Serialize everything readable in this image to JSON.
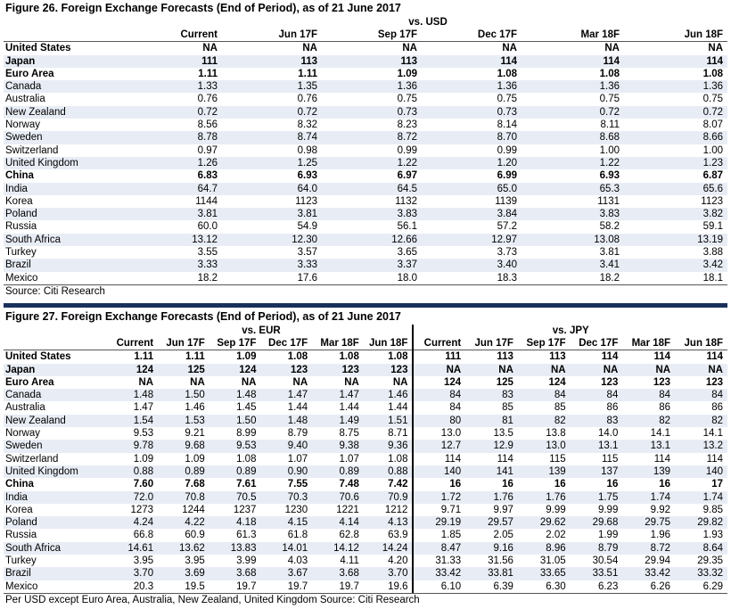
{
  "fig26": {
    "title": "Figure 26. Foreign Exchange Forecasts (End of Period), as of 21 June 2017",
    "group": "vs. USD",
    "columns": [
      "Current",
      "Jun 17F",
      "Sep 17F",
      "Dec 17F",
      "Mar 18F",
      "Jun 18F"
    ],
    "rows": [
      {
        "name": "United States",
        "bold": true,
        "values": [
          "NA",
          "NA",
          "NA",
          "NA",
          "NA",
          "NA"
        ]
      },
      {
        "name": "Japan",
        "bold": true,
        "values": [
          "111",
          "113",
          "113",
          "114",
          "114",
          "114"
        ]
      },
      {
        "name": "Euro Area",
        "bold": true,
        "values": [
          "1.11",
          "1.11",
          "1.09",
          "1.08",
          "1.08",
          "1.08"
        ]
      },
      {
        "name": "Canada",
        "bold": false,
        "values": [
          "1.33",
          "1.35",
          "1.36",
          "1.36",
          "1.36",
          "1.36"
        ]
      },
      {
        "name": "Australia",
        "bold": false,
        "values": [
          "0.76",
          "0.76",
          "0.75",
          "0.75",
          "0.75",
          "0.75"
        ]
      },
      {
        "name": "New Zealand",
        "bold": false,
        "values": [
          "0.72",
          "0.72",
          "0.73",
          "0.73",
          "0.72",
          "0.72"
        ]
      },
      {
        "name": "Norway",
        "bold": false,
        "values": [
          "8.56",
          "8.32",
          "8.23",
          "8.14",
          "8.11",
          "8.07"
        ]
      },
      {
        "name": "Sweden",
        "bold": false,
        "values": [
          "8.78",
          "8.74",
          "8.72",
          "8.70",
          "8.68",
          "8.66"
        ]
      },
      {
        "name": "Switzerland",
        "bold": false,
        "values": [
          "0.97",
          "0.98",
          "0.99",
          "0.99",
          "1.00",
          "1.00"
        ]
      },
      {
        "name": "United Kingdom",
        "bold": false,
        "values": [
          "1.26",
          "1.25",
          "1.22",
          "1.20",
          "1.22",
          "1.23"
        ]
      },
      {
        "name": "China",
        "bold": true,
        "values": [
          "6.83",
          "6.93",
          "6.97",
          "6.99",
          "6.93",
          "6.87"
        ]
      },
      {
        "name": "India",
        "bold": false,
        "values": [
          "64.7",
          "64.0",
          "64.5",
          "65.0",
          "65.3",
          "65.6"
        ]
      },
      {
        "name": "Korea",
        "bold": false,
        "values": [
          "1144",
          "1123",
          "1132",
          "1139",
          "1131",
          "1123"
        ]
      },
      {
        "name": "Poland",
        "bold": false,
        "values": [
          "3.81",
          "3.81",
          "3.83",
          "3.84",
          "3.83",
          "3.82"
        ]
      },
      {
        "name": "Russia",
        "bold": false,
        "values": [
          "60.0",
          "54.9",
          "56.1",
          "57.2",
          "58.2",
          "59.1"
        ]
      },
      {
        "name": "South Africa",
        "bold": false,
        "values": [
          "13.12",
          "12.30",
          "12.66",
          "12.97",
          "13.08",
          "13.19"
        ]
      },
      {
        "name": "Turkey",
        "bold": false,
        "values": [
          "3.55",
          "3.57",
          "3.65",
          "3.73",
          "3.81",
          "3.88"
        ]
      },
      {
        "name": "Brazil",
        "bold": false,
        "values": [
          "3.33",
          "3.33",
          "3.37",
          "3.40",
          "3.41",
          "3.42"
        ]
      },
      {
        "name": "Mexico",
        "bold": false,
        "values": [
          "18.2",
          "17.6",
          "18.0",
          "18.3",
          "18.2",
          "18.1"
        ]
      }
    ],
    "source": "Source: Citi Research"
  },
  "fig27": {
    "title": "Figure 27. Foreign Exchange Forecasts (End of Period), as of 21 June 2017",
    "group_left": "vs. EUR",
    "group_right": "vs. JPY",
    "columns": [
      "Current",
      "Jun 17F",
      "Sep 17F",
      "Dec 17F",
      "Mar 18F",
      "Jun 18F"
    ],
    "rows": [
      {
        "name": "United States",
        "bold": true,
        "eur": [
          "1.11",
          "1.11",
          "1.09",
          "1.08",
          "1.08",
          "1.08"
        ],
        "jpy": [
          "111",
          "113",
          "113",
          "114",
          "114",
          "114"
        ]
      },
      {
        "name": "Japan",
        "bold": true,
        "eur": [
          "124",
          "125",
          "124",
          "123",
          "123",
          "123"
        ],
        "jpy": [
          "NA",
          "NA",
          "NA",
          "NA",
          "NA",
          "NA"
        ]
      },
      {
        "name": "Euro Area",
        "bold": true,
        "eur": [
          "NA",
          "NA",
          "NA",
          "NA",
          "NA",
          "NA"
        ],
        "jpy": [
          "124",
          "125",
          "124",
          "123",
          "123",
          "123"
        ]
      },
      {
        "name": "Canada",
        "bold": false,
        "eur": [
          "1.48",
          "1.50",
          "1.48",
          "1.47",
          "1.47",
          "1.46"
        ],
        "jpy": [
          "84",
          "83",
          "84",
          "84",
          "84",
          "84"
        ]
      },
      {
        "name": "Australia",
        "bold": false,
        "eur": [
          "1.47",
          "1.46",
          "1.45",
          "1.44",
          "1.44",
          "1.44"
        ],
        "jpy": [
          "84",
          "85",
          "85",
          "86",
          "86",
          "86"
        ]
      },
      {
        "name": "New Zealand",
        "bold": false,
        "eur": [
          "1.54",
          "1.53",
          "1.50",
          "1.48",
          "1.49",
          "1.51"
        ],
        "jpy": [
          "80",
          "81",
          "82",
          "83",
          "82",
          "82"
        ]
      },
      {
        "name": "Norway",
        "bold": false,
        "eur": [
          "9.53",
          "9.21",
          "8.99",
          "8.79",
          "8.75",
          "8.71"
        ],
        "jpy": [
          "13.0",
          "13.5",
          "13.8",
          "14.0",
          "14.1",
          "14.1"
        ]
      },
      {
        "name": "Sweden",
        "bold": false,
        "eur": [
          "9.78",
          "9.68",
          "9.53",
          "9.40",
          "9.38",
          "9.36"
        ],
        "jpy": [
          "12.7",
          "12.9",
          "13.0",
          "13.1",
          "13.1",
          "13.2"
        ]
      },
      {
        "name": "Switzerland",
        "bold": false,
        "eur": [
          "1.09",
          "1.09",
          "1.08",
          "1.07",
          "1.07",
          "1.08"
        ],
        "jpy": [
          "114",
          "114",
          "115",
          "115",
          "114",
          "114"
        ]
      },
      {
        "name": "United Kingdom",
        "bold": false,
        "eur": [
          "0.88",
          "0.89",
          "0.89",
          "0.90",
          "0.89",
          "0.88"
        ],
        "jpy": [
          "140",
          "141",
          "139",
          "137",
          "139",
          "140"
        ]
      },
      {
        "name": "China",
        "bold": true,
        "eur": [
          "7.60",
          "7.68",
          "7.61",
          "7.55",
          "7.48",
          "7.42"
        ],
        "jpy": [
          "16",
          "16",
          "16",
          "16",
          "16",
          "17"
        ]
      },
      {
        "name": "India",
        "bold": false,
        "eur": [
          "72.0",
          "70.8",
          "70.5",
          "70.3",
          "70.6",
          "70.9"
        ],
        "jpy": [
          "1.72",
          "1.76",
          "1.76",
          "1.75",
          "1.74",
          "1.74"
        ]
      },
      {
        "name": "Korea",
        "bold": false,
        "eur": [
          "1273",
          "1244",
          "1237",
          "1230",
          "1221",
          "1212"
        ],
        "jpy": [
          "9.71",
          "9.97",
          "9.99",
          "9.99",
          "9.92",
          "9.85"
        ]
      },
      {
        "name": "Poland",
        "bold": false,
        "eur": [
          "4.24",
          "4.22",
          "4.18",
          "4.15",
          "4.14",
          "4.13"
        ],
        "jpy": [
          "29.19",
          "29.57",
          "29.62",
          "29.68",
          "29.75",
          "29.82"
        ]
      },
      {
        "name": "Russia",
        "bold": false,
        "eur": [
          "66.8",
          "60.9",
          "61.3",
          "61.8",
          "62.8",
          "63.9"
        ],
        "jpy": [
          "1.85",
          "2.05",
          "2.02",
          "1.99",
          "1.96",
          "1.93"
        ]
      },
      {
        "name": "South Africa",
        "bold": false,
        "eur": [
          "14.61",
          "13.62",
          "13.83",
          "14.01",
          "14.12",
          "14.24"
        ],
        "jpy": [
          "8.47",
          "9.16",
          "8.96",
          "8.79",
          "8.72",
          "8.64"
        ]
      },
      {
        "name": "Turkey",
        "bold": false,
        "eur": [
          "3.95",
          "3.95",
          "3.99",
          "4.03",
          "4.11",
          "4.20"
        ],
        "jpy": [
          "31.33",
          "31.56",
          "31.05",
          "30.54",
          "29.94",
          "29.35"
        ]
      },
      {
        "name": "Brazil",
        "bold": false,
        "eur": [
          "3.70",
          "3.69",
          "3.68",
          "3.67",
          "3.68",
          "3.70"
        ],
        "jpy": [
          "33.42",
          "33.81",
          "33.65",
          "33.51",
          "33.42",
          "33.32"
        ]
      },
      {
        "name": "Mexico",
        "bold": false,
        "eur": [
          "20.3",
          "19.5",
          "19.7",
          "19.7",
          "19.7",
          "19.6"
        ],
        "jpy": [
          "6.10",
          "6.39",
          "6.30",
          "6.23",
          "6.26",
          "6.29"
        ]
      }
    ],
    "source": "Per USD except Euro Area, Australia, New Zealand, United Kingdom  Source: Citi Research"
  },
  "colors": {
    "header_bar": "#1a2f5a",
    "stripe": "#e8edf5"
  }
}
